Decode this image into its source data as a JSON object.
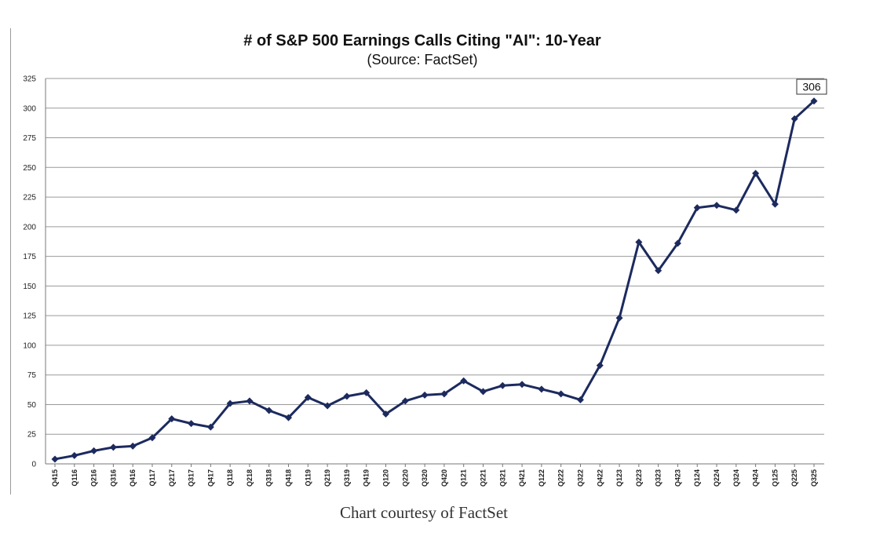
{
  "chart_data": {
    "type": "line",
    "title": "# of S&P 500 Earnings Calls Citing \"AI\": 10-Year",
    "subtitle": "(Source: FactSet)",
    "xlabel": "",
    "ylabel": "",
    "ylim": [
      0,
      325
    ],
    "yticks": [
      0,
      25,
      50,
      75,
      100,
      125,
      150,
      175,
      200,
      225,
      250,
      275,
      300,
      325
    ],
    "grid": true,
    "categories": [
      "Q415",
      "Q116",
      "Q216",
      "Q316",
      "Q416",
      "Q117",
      "Q217",
      "Q317",
      "Q417",
      "Q118",
      "Q218",
      "Q318",
      "Q418",
      "Q119",
      "Q219",
      "Q319",
      "Q419",
      "Q120",
      "Q220",
      "Q320",
      "Q420",
      "Q121",
      "Q221",
      "Q321",
      "Q421",
      "Q122",
      "Q222",
      "Q322",
      "Q422",
      "Q123",
      "Q223",
      "Q323",
      "Q423",
      "Q124",
      "Q224",
      "Q324",
      "Q424",
      "Q125",
      "Q225",
      "Q325"
    ],
    "series": [
      {
        "name": "Earnings calls citing AI",
        "color": "#1c2a5e",
        "values": [
          4,
          7,
          11,
          14,
          15,
          22,
          38,
          34,
          31,
          51,
          53,
          45,
          39,
          56,
          49,
          57,
          60,
          42,
          53,
          58,
          59,
          70,
          61,
          66,
          67,
          63,
          59,
          54,
          83,
          123,
          187,
          163,
          186,
          216,
          218,
          214,
          245,
          219,
          291,
          306
        ]
      }
    ],
    "annotations": [
      {
        "category": "Q325",
        "label": "306"
      }
    ]
  },
  "caption": "Chart courtesy of FactSet"
}
